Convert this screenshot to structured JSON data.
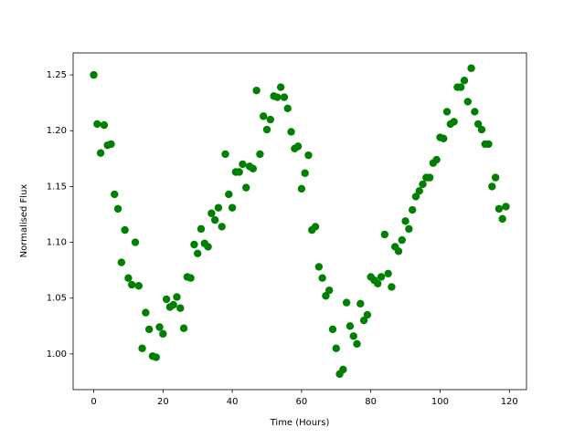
{
  "chart_data": {
    "type": "scatter",
    "xlabel": "Time (Hours)",
    "ylabel": "Normalised Flux",
    "color": "#008000",
    "x": [
      0,
      1,
      2,
      3,
      4,
      5,
      6,
      7,
      8,
      9,
      10,
      11,
      12,
      13,
      14,
      15,
      16,
      17,
      18,
      19,
      20,
      21,
      22,
      23,
      24,
      25,
      26,
      27,
      28,
      29,
      30,
      31,
      32,
      33,
      34,
      35,
      36,
      37,
      38,
      39,
      40,
      41,
      42,
      43,
      44,
      45,
      46,
      47,
      48,
      49,
      50,
      51,
      52,
      53,
      54,
      55,
      56,
      57,
      58,
      59,
      60,
      61,
      62,
      63,
      64,
      65,
      66,
      67,
      68,
      69,
      70,
      71,
      72,
      73,
      74,
      75,
      76,
      77,
      78,
      79,
      80,
      81,
      82,
      83,
      84,
      85,
      86,
      87,
      88,
      89,
      90,
      91,
      92,
      93,
      94,
      95,
      96,
      97,
      98,
      99,
      100,
      101,
      102,
      103,
      104,
      105,
      106,
      107,
      108,
      109,
      110,
      111,
      112,
      113,
      114,
      115,
      116,
      117,
      118,
      119
    ],
    "values": [
      1.25,
      1.206,
      1.18,
      1.205,
      1.187,
      1.188,
      1.143,
      1.13,
      1.082,
      1.111,
      1.068,
      1.062,
      1.1,
      1.061,
      1.005,
      1.037,
      1.022,
      0.998,
      0.997,
      1.024,
      1.018,
      1.049,
      1.042,
      1.044,
      1.051,
      1.041,
      1.023,
      1.069,
      1.068,
      1.098,
      1.09,
      1.112,
      1.099,
      1.096,
      1.126,
      1.12,
      1.131,
      1.114,
      1.179,
      1.143,
      1.131,
      1.163,
      1.163,
      1.17,
      1.149,
      1.168,
      1.166,
      1.236,
      1.179,
      1.213,
      1.201,
      1.21,
      1.231,
      1.23,
      1.239,
      1.23,
      1.22,
      1.199,
      1.184,
      1.186,
      1.148,
      1.162,
      1.178,
      1.111,
      1.114,
      1.078,
      1.068,
      1.052,
      1.057,
      1.022,
      1.005,
      0.982,
      0.986,
      1.046,
      1.025,
      1.016,
      1.009,
      1.045,
      1.03,
      1.035,
      1.069,
      1.066,
      1.063,
      1.069,
      1.107,
      1.072,
      1.06,
      1.096,
      1.092,
      1.102,
      1.119,
      1.112,
      1.129,
      1.141,
      1.146,
      1.152,
      1.158,
      1.158,
      1.171,
      1.174,
      1.194,
      1.193,
      1.217,
      1.206,
      1.208,
      1.239,
      1.239,
      1.245,
      1.226,
      1.256,
      1.217,
      1.206,
      1.201,
      1.188,
      1.188,
      1.15,
      1.158,
      1.13,
      1.121,
      1.132
    ],
    "xlim": [
      -5.95,
      124.95
    ],
    "ylim": [
      0.968,
      1.2697
    ],
    "xticks": [
      0,
      20,
      40,
      60,
      80,
      100,
      120
    ],
    "yticks": [
      {
        "value": 1.0,
        "label": "1.00"
      },
      {
        "value": 1.05,
        "label": "1.05"
      },
      {
        "value": 1.1,
        "label": "1.10"
      },
      {
        "value": 1.15,
        "label": "1.15"
      },
      {
        "value": 1.2,
        "label": "1.20"
      },
      {
        "value": 1.25,
        "label": "1.25"
      }
    ]
  }
}
